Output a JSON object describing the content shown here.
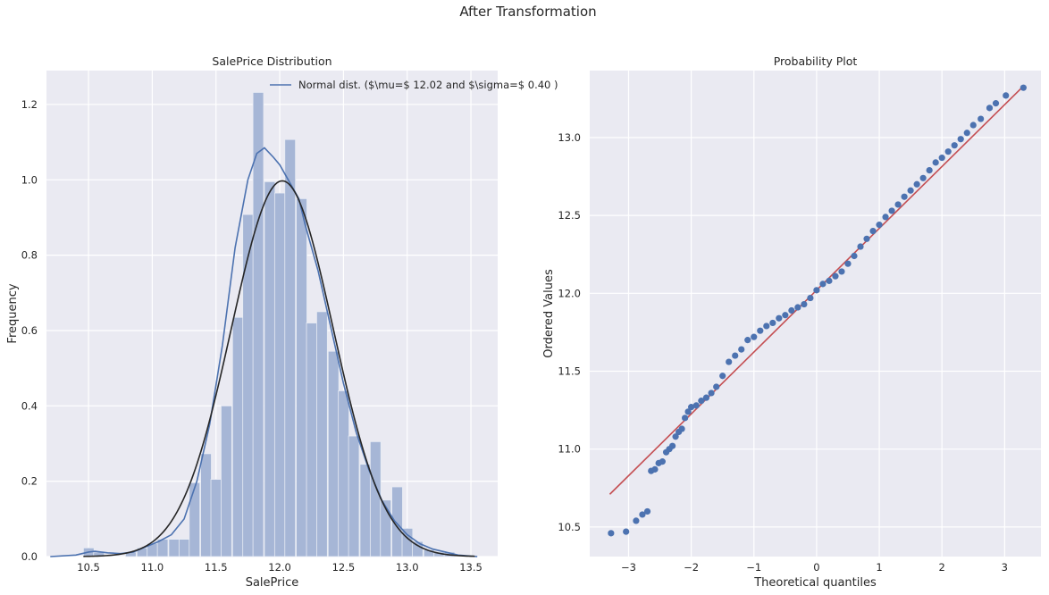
{
  "figure": {
    "suptitle": "After Transformation"
  },
  "colors": {
    "axes_bg": "#EAEAF2",
    "grid": "#FFFFFF",
    "hist": "#A6B6D6",
    "kde": "#4C72B0",
    "normal_fit": "#262626",
    "points": "#4C72B0",
    "fit_line": "#C44E52"
  },
  "chart_data": [
    {
      "type": "bar",
      "title": "SalePrice Distribution",
      "xlabel": "SalePrice",
      "ylabel": "Frequency",
      "xlim": [
        10.17,
        13.71
      ],
      "ylim": [
        0,
        1.29
      ],
      "xticks": [
        "10.5",
        "11.0",
        "11.5",
        "12.0",
        "12.5",
        "13.0",
        "13.5"
      ],
      "yticks": [
        "0.0",
        "0.2",
        "0.4",
        "0.6",
        "0.8",
        "1.0",
        "1.2"
      ],
      "grid": true,
      "legend_position": "top-right",
      "legend": [
        "Normal dist. ($\\mu=$ 12.02 and $\\sigma=$ 0.40 )"
      ],
      "histogram": {
        "bin_width": 0.0833,
        "bins": [
          {
            "start": 10.46,
            "value": 0.023
          },
          {
            "start": 10.54,
            "value": 0.012
          },
          {
            "start": 10.63,
            "value": 0.0
          },
          {
            "start": 10.71,
            "value": 0.0
          },
          {
            "start": 10.79,
            "value": 0.012
          },
          {
            "start": 10.88,
            "value": 0.023
          },
          {
            "start": 10.96,
            "value": 0.035
          },
          {
            "start": 11.04,
            "value": 0.046
          },
          {
            "start": 11.13,
            "value": 0.046
          },
          {
            "start": 11.21,
            "value": 0.046
          },
          {
            "start": 11.29,
            "value": 0.196
          },
          {
            "start": 11.38,
            "value": 0.273
          },
          {
            "start": 11.46,
            "value": 0.205
          },
          {
            "start": 11.54,
            "value": 0.4
          },
          {
            "start": 11.63,
            "value": 0.635
          },
          {
            "start": 11.71,
            "value": 0.908
          },
          {
            "start": 11.79,
            "value": 1.232
          },
          {
            "start": 11.88,
            "value": 0.995
          },
          {
            "start": 11.96,
            "value": 0.965
          },
          {
            "start": 12.04,
            "value": 1.107
          },
          {
            "start": 12.13,
            "value": 0.95
          },
          {
            "start": 12.21,
            "value": 0.62
          },
          {
            "start": 12.29,
            "value": 0.65
          },
          {
            "start": 12.38,
            "value": 0.545
          },
          {
            "start": 12.46,
            "value": 0.44
          },
          {
            "start": 12.54,
            "value": 0.32
          },
          {
            "start": 12.63,
            "value": 0.245
          },
          {
            "start": 12.71,
            "value": 0.305
          },
          {
            "start": 12.79,
            "value": 0.15
          },
          {
            "start": 12.88,
            "value": 0.185
          },
          {
            "start": 12.96,
            "value": 0.075
          },
          {
            "start": 13.04,
            "value": 0.04
          },
          {
            "start": 13.13,
            "value": 0.018
          },
          {
            "start": 13.21,
            "value": 0.012
          },
          {
            "start": 13.29,
            "value": 0.012
          }
        ]
      },
      "kde": {
        "x": [
          10.2,
          10.4,
          10.5,
          10.55,
          10.65,
          10.75,
          10.85,
          10.95,
          11.05,
          11.15,
          11.25,
          11.35,
          11.45,
          11.55,
          11.65,
          11.75,
          11.82,
          11.88,
          11.95,
          12.0,
          12.05,
          12.1,
          12.15,
          12.2,
          12.3,
          12.4,
          12.5,
          12.6,
          12.7,
          12.8,
          12.9,
          13.0,
          13.1,
          13.2,
          13.3,
          13.4,
          13.55
        ],
        "y": [
          0.0,
          0.004,
          0.012,
          0.014,
          0.01,
          0.008,
          0.012,
          0.026,
          0.04,
          0.058,
          0.1,
          0.2,
          0.35,
          0.56,
          0.82,
          1.0,
          1.07,
          1.085,
          1.06,
          1.04,
          1.01,
          0.98,
          0.95,
          0.88,
          0.76,
          0.61,
          0.46,
          0.33,
          0.23,
          0.15,
          0.095,
          0.058,
          0.034,
          0.02,
          0.012,
          0.004,
          0.0
        ]
      },
      "normal_fit": {
        "mu": 12.02,
        "sigma": 0.4,
        "x_range": [
          10.46,
          13.53
        ]
      }
    },
    {
      "type": "scatter",
      "title": "Probability Plot",
      "xlabel": "Theoretical quantiles",
      "ylabel": "Ordered Values",
      "xlim": [
        -3.62,
        3.58
      ],
      "ylim": [
        10.31,
        13.43
      ],
      "xticks": [
        "−3",
        "−2",
        "−1",
        "0",
        "1",
        "2",
        "3"
      ],
      "yticks": [
        "10.5",
        "11.0",
        "11.5",
        "12.0",
        "12.5",
        "13.0"
      ],
      "grid": true,
      "fit_line": {
        "x": [
          -3.3,
          3.3
        ],
        "y": [
          10.71,
          13.33
        ]
      },
      "points": {
        "x": [
          -3.28,
          -3.04,
          -2.88,
          -2.78,
          -2.7,
          -2.64,
          -2.58,
          -2.52,
          -2.46,
          -2.4,
          -2.35,
          -2.3,
          -2.25,
          -2.2,
          -2.15,
          -2.1,
          -2.05,
          -2.0,
          -1.92,
          -1.84,
          -1.76,
          -1.68,
          -1.6,
          -1.5,
          -1.4,
          -1.3,
          -1.2,
          -1.1,
          -1.0,
          -0.9,
          -0.8,
          -0.7,
          -0.6,
          -0.5,
          -0.4,
          -0.3,
          -0.2,
          -0.1,
          0.0,
          0.1,
          0.2,
          0.3,
          0.4,
          0.5,
          0.6,
          0.7,
          0.8,
          0.9,
          1.0,
          1.1,
          1.2,
          1.3,
          1.4,
          1.5,
          1.6,
          1.7,
          1.8,
          1.9,
          2.0,
          2.1,
          2.2,
          2.3,
          2.4,
          2.5,
          2.62,
          2.76,
          2.86,
          3.02,
          3.3
        ],
        "y": [
          10.46,
          10.47,
          10.54,
          10.58,
          10.6,
          10.86,
          10.87,
          10.91,
          10.92,
          10.98,
          11.0,
          11.02,
          11.08,
          11.11,
          11.13,
          11.2,
          11.24,
          11.27,
          11.28,
          11.31,
          11.33,
          11.36,
          11.4,
          11.47,
          11.56,
          11.6,
          11.64,
          11.7,
          11.72,
          11.76,
          11.79,
          11.81,
          11.84,
          11.86,
          11.89,
          11.91,
          11.93,
          11.97,
          12.02,
          12.06,
          12.08,
          12.11,
          12.14,
          12.19,
          12.24,
          12.3,
          12.35,
          12.4,
          12.44,
          12.49,
          12.53,
          12.57,
          12.62,
          12.66,
          12.7,
          12.74,
          12.79,
          12.84,
          12.87,
          12.91,
          12.95,
          12.99,
          13.03,
          13.08,
          13.12,
          13.19,
          13.22,
          13.27,
          13.32
        ]
      }
    }
  ]
}
